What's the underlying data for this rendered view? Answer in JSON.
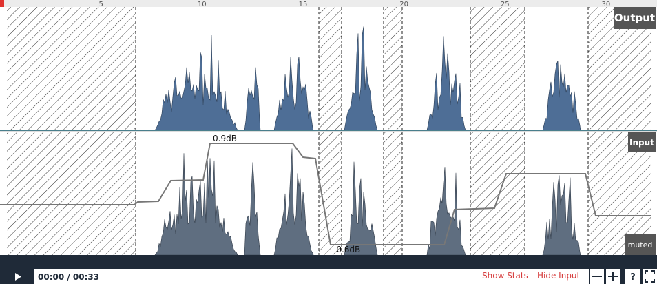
{
  "ruler": {
    "ticks": [
      5,
      10,
      15,
      20,
      25,
      30
    ]
  },
  "tracks": {
    "output": "Output",
    "input": "Input",
    "muted": "muted"
  },
  "gain": {
    "max": "0.9dB",
    "min": "-0.6dB"
  },
  "player": {
    "time": "00:00 / 00:33",
    "show_stats": "Show Stats",
    "hide_input": "Hide Input",
    "help": "?"
  }
}
